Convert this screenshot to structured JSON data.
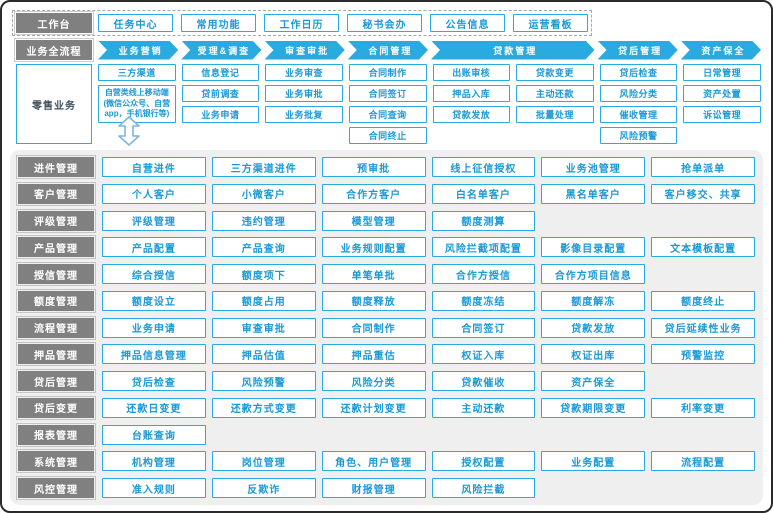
{
  "colors": {
    "accent": "#29ABE2",
    "label_bg": "#808080",
    "panel_bg": "#EFEFEF",
    "box_text": "#1A99D5",
    "frame_border": "#2B2B2B"
  },
  "workbench": {
    "label": "工作台",
    "items": [
      "任务中心",
      "常用功能",
      "工作日历",
      "秘书会办",
      "公告信息",
      "运营看板"
    ]
  },
  "process_flow": {
    "label": "业务全流程",
    "stages": [
      {
        "label": "业务营销",
        "span": 1
      },
      {
        "label": "受理&调查",
        "span": 1
      },
      {
        "label": "审查审批",
        "span": 1
      },
      {
        "label": "合同管理",
        "span": 1
      },
      {
        "label": "贷款管理",
        "span": 2
      },
      {
        "label": "贷后管理",
        "span": 1
      },
      {
        "label": "资产保全",
        "span": 1
      }
    ]
  },
  "retail": {
    "label": "零售业务",
    "columns": [
      {
        "items": [
          "三方渠道",
          "自营类线上移动端(微信公众号、自营app，手机银行等)"
        ]
      },
      {
        "items": [
          "信息登记",
          "贷前调查",
          "业务申请"
        ]
      },
      {
        "items": [
          "业务审查",
          "业务审批",
          "业务批复"
        ]
      },
      {
        "items": [
          "合同制作",
          "合同签订",
          "合同查询",
          "合同终止"
        ]
      },
      {
        "items": [
          "出账审核",
          "押品入库",
          "贷款发放"
        ]
      },
      {
        "items": [
          "贷款变更",
          "主动还款",
          "批量处理"
        ]
      },
      {
        "items": [
          "贷后检查",
          "风险分类",
          "催收管理",
          "风险预警"
        ]
      },
      {
        "items": [
          "日常管理",
          "资产处置",
          "诉讼管理"
        ]
      }
    ]
  },
  "connector_icon": "double-arrow",
  "modules": [
    {
      "label": "进件管理",
      "items": [
        "自营进件",
        "三方渠道进件",
        "预审批",
        "线上征信授权",
        "业务池管理",
        "抢单派单"
      ]
    },
    {
      "label": "客户管理",
      "items": [
        "个人客户",
        "小微客户",
        "合作方客户",
        "白名单客户",
        "黑名单客户",
        "客户移交、共享"
      ]
    },
    {
      "label": "评级管理",
      "items": [
        "评级管理",
        "违约管理",
        "模型管理",
        "额度测算"
      ]
    },
    {
      "label": "产品管理",
      "items": [
        "产品配置",
        "产品查询",
        "业务规则配置",
        "风险拦截项配置",
        "影像目录配置",
        "文本模板配置"
      ]
    },
    {
      "label": "授信管理",
      "items": [
        "综合授信",
        "额度项下",
        "单笔单批",
        "合作方授信",
        "合作方项目信息"
      ]
    },
    {
      "label": "额度管理",
      "items": [
        "额度设立",
        "额度占用",
        "额度释放",
        "额度冻结",
        "额度解冻",
        "额度终止"
      ]
    },
    {
      "label": "流程管理",
      "items": [
        "业务申请",
        "审查审批",
        "合同制作",
        "合同签订",
        "贷款发放",
        "贷后延续性业务"
      ]
    },
    {
      "label": "押品管理",
      "items": [
        "押品信息管理",
        "押品估值",
        "押品重估",
        "权证入库",
        "权证出库",
        "预警监控"
      ]
    },
    {
      "label": "贷后管理",
      "items": [
        "贷后检查",
        "风险预警",
        "风险分类",
        "贷款催收",
        "资产保全"
      ]
    },
    {
      "label": "贷后变更",
      "items": [
        "还款日变更",
        "还款方式变更",
        "还款计划变更",
        "主动还款",
        "贷款期限变更",
        "利率变更"
      ]
    },
    {
      "label": "报表管理",
      "items": [
        "台账查询"
      ]
    },
    {
      "label": "系统管理",
      "items": [
        "机构管理",
        "岗位管理",
        "角色、用户管理",
        "授权配置",
        "业务配置",
        "流程配置"
      ]
    },
    {
      "label": "风控管理",
      "items": [
        "准入规则",
        "反欺诈",
        "财报管理",
        "风险拦截"
      ]
    }
  ]
}
